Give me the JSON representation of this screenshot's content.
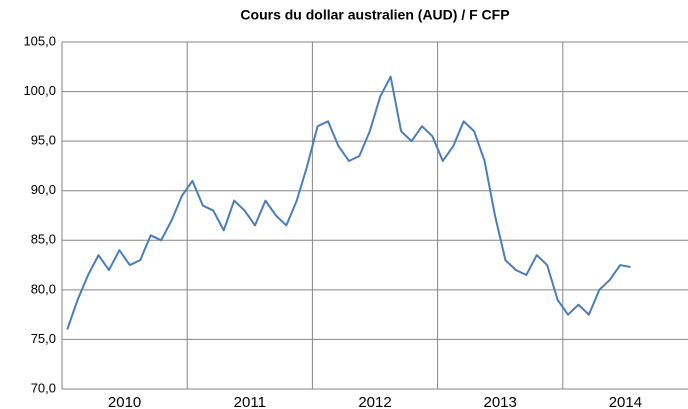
{
  "chart_data": {
    "type": "line",
    "title": "Cours du dollar australien (AUD) / F CFP",
    "categories": [
      null,
      null,
      null,
      null,
      null,
      "2010",
      null,
      null,
      null,
      null,
      null,
      null,
      null,
      null,
      null,
      null,
      null,
      "2011",
      null,
      null,
      null,
      null,
      null,
      null,
      null,
      null,
      null,
      null,
      null,
      "2012",
      null,
      null,
      null,
      null,
      null,
      null,
      null,
      null,
      null,
      null,
      null,
      "2013",
      null,
      null,
      null,
      null,
      null,
      null,
      null,
      null,
      null,
      null,
      null,
      "2014",
      null
    ],
    "series": [
      {
        "name": "AUD",
        "color": "#4a7ebb",
        "values": [
          76,
          79,
          81.5,
          83.5,
          82,
          84,
          82.5,
          83,
          85.5,
          85,
          87,
          89.5,
          91,
          88.5,
          88,
          86,
          89,
          88,
          86.5,
          89,
          87.5,
          86.5,
          89,
          92.5,
          96.5,
          97,
          94.5,
          93,
          93.5,
          96,
          99.5,
          101.5,
          96,
          95,
          96.5,
          95.5,
          93,
          94.5,
          97,
          96,
          93,
          87.5,
          83,
          82,
          81.5,
          83.5,
          82.5,
          79,
          77.5,
          78.5,
          77.5,
          80,
          81,
          82.5,
          82.3
        ]
      }
    ],
    "ylim": [
      70,
      105
    ],
    "yticks": [
      {
        "value": 70,
        "label": "70,0"
      },
      {
        "value": 75,
        "label": "75,0"
      },
      {
        "value": 80,
        "label": "80,0"
      },
      {
        "value": 85,
        "label": "85,0"
      },
      {
        "value": 90,
        "label": "90,0"
      },
      {
        "value": 95,
        "label": "95,0"
      },
      {
        "value": 100,
        "label": "100,0"
      },
      {
        "value": 105,
        "label": "105,0"
      }
    ],
    "grid": true
  }
}
